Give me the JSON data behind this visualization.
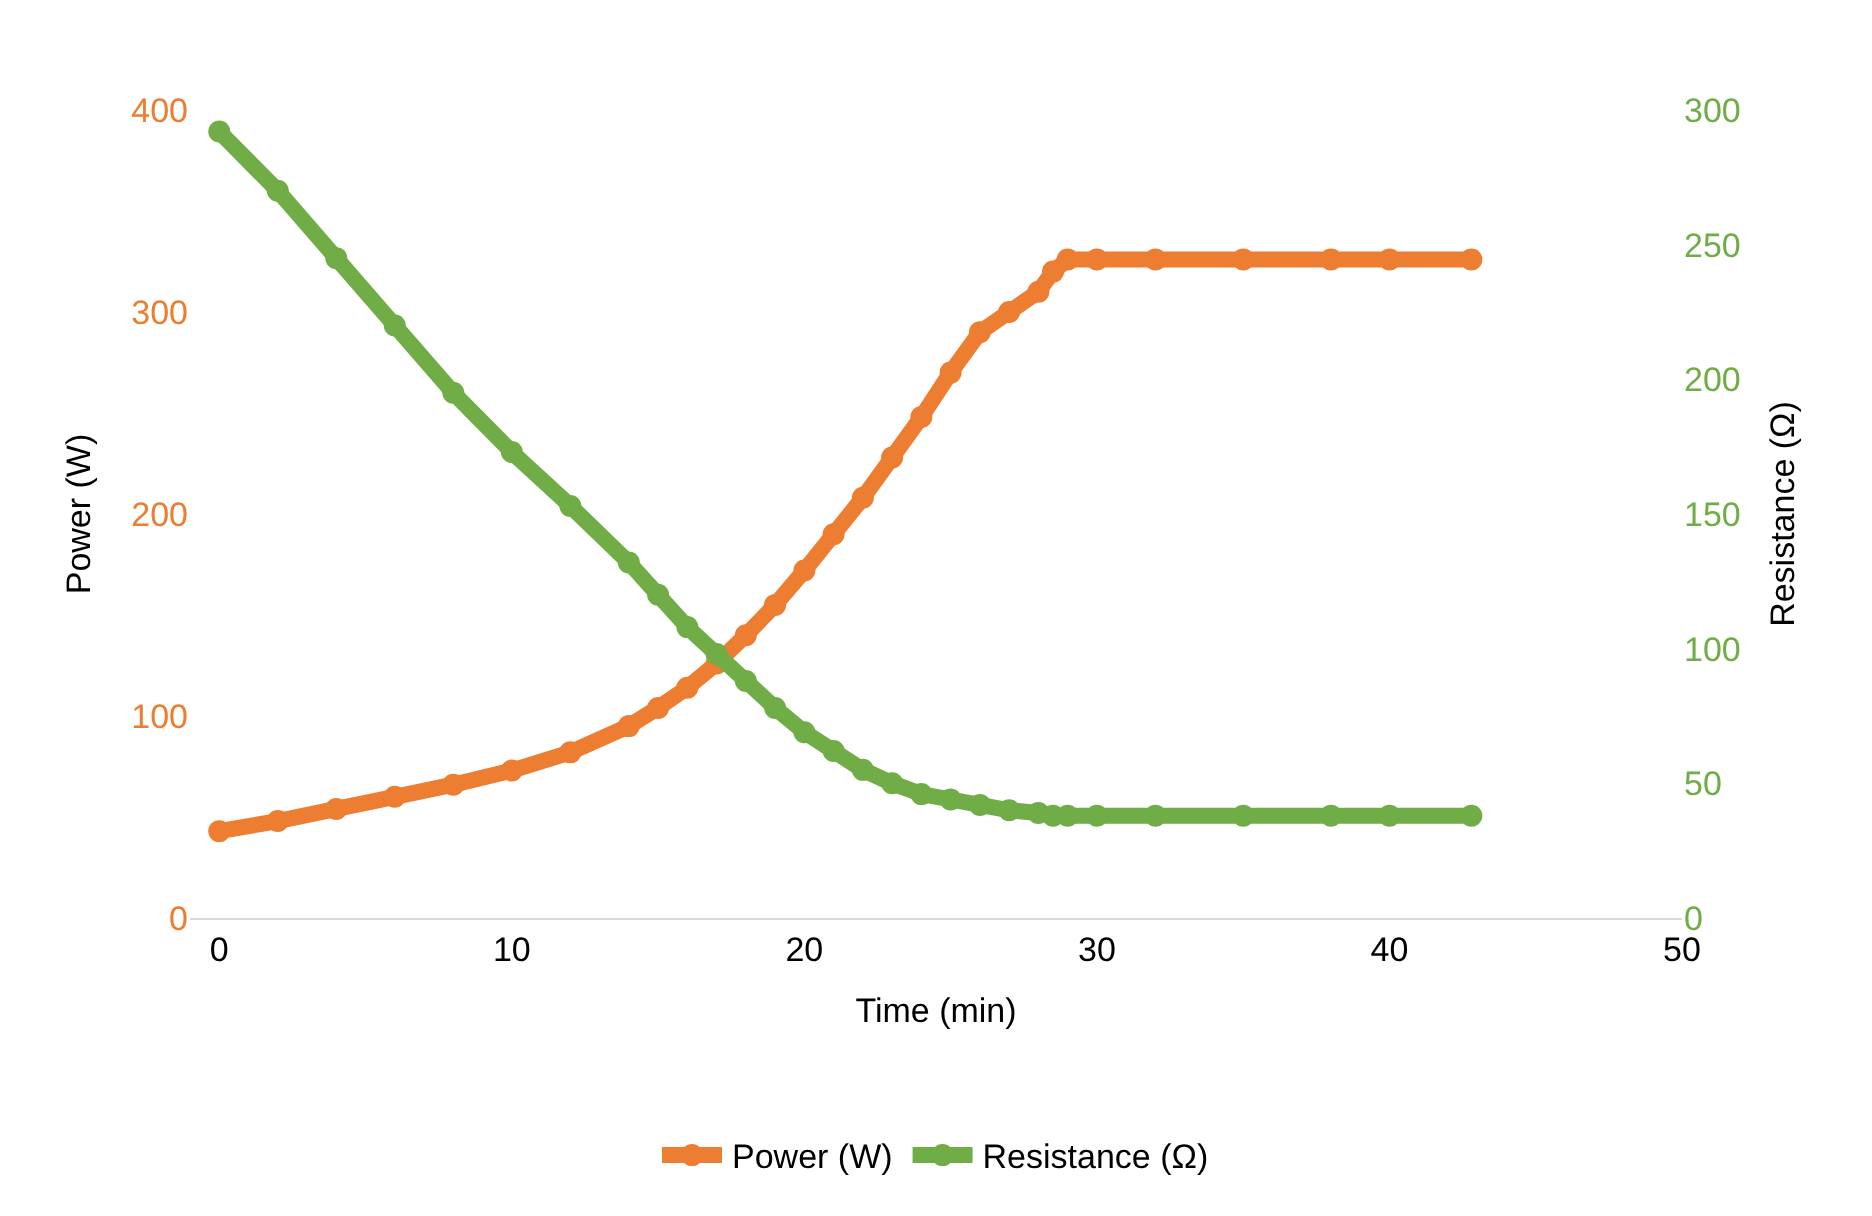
{
  "chart_data": {
    "type": "line",
    "xlabel": "Time (min)",
    "ylabel": "Power (W)",
    "y2label": "Resistance (Ω)",
    "xlim": [
      -1,
      50
    ],
    "xticks": [
      0,
      10,
      20,
      30,
      40,
      50
    ],
    "ylim": [
      0,
      400
    ],
    "yticks": [
      0,
      100,
      200,
      300,
      400
    ],
    "y2lim": [
      0,
      300
    ],
    "y2ticks": [
      0,
      50,
      100,
      150,
      200,
      250,
      300
    ],
    "legend": "bottom",
    "marker": "circle",
    "line_style": "solid",
    "x": [
      0,
      2,
      4,
      6,
      8,
      10,
      12,
      14,
      15,
      16,
      17,
      18,
      19,
      20,
      21,
      22,
      23,
      24,
      25,
      26,
      27,
      28,
      28.5,
      29,
      30,
      32,
      35,
      38,
      40,
      42.8
    ],
    "series": [
      {
        "name": "Power (W)",
        "color": "#ed7d31",
        "values": [
          43,
          48,
          54,
          60,
          66,
          73,
          82,
          95,
          104,
          114,
          126,
          140,
          155,
          172,
          190,
          208,
          228,
          248,
          270,
          290,
          300,
          310,
          320,
          326,
          326,
          326,
          326,
          326,
          326,
          326
        ]
      },
      {
        "name": "Resistance (Ω)",
        "color": "#70ad47",
        "axis": "y2",
        "values": [
          292,
          270,
          245,
          220,
          195,
          173,
          153,
          132,
          120,
          108,
          98,
          88,
          78,
          69,
          62,
          55,
          50,
          46,
          44,
          42,
          40,
          39,
          38,
          38,
          38,
          38,
          38,
          38,
          38,
          38
        ]
      }
    ]
  }
}
